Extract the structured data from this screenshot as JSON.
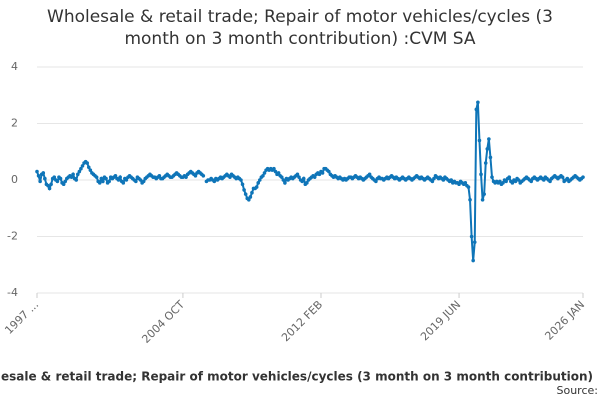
{
  "chart_data": {
    "type": "line",
    "title": "Wholesale & retail trade; Repair of motor vehicles/cycles (3 month on 3 month contribution) :CVM SA",
    "x_label": "esale & retail trade; Repair of motor vehicles/cycles (3 month on 3 month contribution)",
    "source": "Source:",
    "categories": [
      "1997 ...",
      null,
      null,
      null,
      null,
      null,
      null,
      null,
      null,
      null,
      null,
      null,
      null,
      null,
      null,
      null,
      null,
      null,
      null,
      null,
      null,
      null,
      null,
      null,
      null,
      null,
      null,
      null,
      null,
      null,
      null,
      null,
      null,
      null,
      null,
      null,
      null,
      null,
      null,
      null,
      null,
      null,
      null,
      null,
      null,
      null,
      null,
      null,
      null,
      null,
      null,
      null,
      null,
      null,
      null,
      null,
      null,
      null,
      null,
      null,
      null,
      null,
      null,
      null,
      null,
      null,
      null,
      null,
      null,
      null,
      null,
      null,
      null,
      null,
      null,
      null,
      null,
      null,
      null,
      null,
      null,
      null,
      null,
      null,
      null,
      null,
      null,
      null,
      null,
      null,
      null,
      null,
      null,
      "2004 OCT",
      null,
      null,
      null,
      null,
      null,
      null,
      null,
      null,
      null,
      null,
      null,
      null,
      null,
      null,
      null,
      null,
      null,
      null,
      null,
      null,
      null,
      null,
      null,
      null,
      null,
      null,
      null,
      null,
      null,
      null,
      null,
      null,
      null,
      null,
      null,
      null,
      null,
      null,
      null,
      null,
      null,
      null,
      null,
      null,
      null,
      null,
      null,
      null,
      null,
      null,
      null,
      null,
      null,
      null,
      null,
      null,
      null,
      null,
      null,
      null,
      null,
      null,
      null,
      null,
      null,
      null,
      null,
      null,
      null,
      null,
      null,
      null,
      null,
      null,
      null,
      null,
      null,
      null,
      null,
      null,
      null,
      null,
      null,
      null,
      null,
      null,
      null,
      "2012 FEB",
      null,
      null,
      null,
      null,
      null,
      null,
      null,
      null,
      null,
      null,
      null,
      null,
      null,
      null,
      null,
      null,
      null,
      null,
      null,
      null,
      null,
      null,
      null,
      null,
      null,
      null,
      null,
      null,
      null,
      null,
      null,
      null,
      null,
      null,
      null,
      null,
      null,
      null,
      null,
      null,
      null,
      null,
      null,
      null,
      null,
      null,
      null,
      null,
      null,
      null,
      null,
      null,
      null,
      null,
      null,
      null,
      null,
      null,
      null,
      null,
      null,
      null,
      null,
      null,
      null,
      null,
      null,
      null,
      null,
      null,
      null,
      null,
      null,
      null,
      null,
      null,
      null,
      null,
      null,
      null,
      null,
      null,
      null,
      null,
      null,
      null,
      null,
      "2019 JUN",
      null,
      null,
      null,
      null,
      null,
      null,
      null,
      null,
      null,
      null,
      null,
      null,
      null,
      null,
      null,
      null,
      null,
      null,
      null,
      null,
      null,
      null,
      null,
      null,
      null,
      null,
      null,
      null,
      null,
      null,
      null,
      null,
      null,
      null,
      null,
      null,
      null,
      null,
      null,
      null,
      null,
      null,
      null,
      null,
      null,
      null,
      null,
      null,
      null,
      null,
      null,
      null,
      null,
      null,
      null,
      null,
      null,
      null,
      null,
      null,
      null,
      null,
      null,
      null,
      null,
      null,
      null,
      null,
      null,
      null,
      null,
      null,
      null,
      null,
      null,
      null,
      null,
      null,
      "2026 JAN"
    ],
    "series": [
      {
        "color": "#0f75b8",
        "values": [
          0.3,
          0.15,
          -0.05,
          0.2,
          0.25,
          0.05,
          -0.15,
          -0.2,
          -0.3,
          -0.15,
          0.05,
          0.1,
          0,
          -0.05,
          0.1,
          0.05,
          -0.1,
          -0.15,
          -0.05,
          0.05,
          0.1,
          0.15,
          0.1,
          0.2,
          0.05,
          0,
          0.2,
          0.3,
          0.4,
          0.5,
          0.6,
          0.65,
          0.6,
          0.45,
          0.35,
          0.25,
          0.2,
          0.15,
          0.1,
          -0.05,
          -0.1,
          0.05,
          -0.05,
          0.1,
          0.05,
          -0.1,
          -0.05,
          0.1,
          0.05,
          0.1,
          0.15,
          0.05,
          0,
          0.1,
          -0.05,
          -0.1,
          0.05,
          0,
          0.1,
          0.15,
          0.1,
          0.05,
          0,
          -0.05,
          0.1,
          0.05,
          0,
          -0.1,
          -0.05,
          0.05,
          0.1,
          0.15,
          0.2,
          0.15,
          0.1,
          0.1,
          0.05,
          0.1,
          0.15,
          0.05,
          0.05,
          0.1,
          0.15,
          0.2,
          0.15,
          0.1,
          0.1,
          0.15,
          0.2,
          0.25,
          0.2,
          0.15,
          0.1,
          0.1,
          0.15,
          0.1,
          0.2,
          0.25,
          0.3,
          0.25,
          0.2,
          0.15,
          0.25,
          0.3,
          0.25,
          0.2,
          0.15,
          null,
          -0.05,
          0,
          0,
          0.05,
          0,
          -0.05,
          0.05,
          0,
          0.05,
          0.1,
          0.05,
          0.1,
          0.15,
          0.2,
          0.15,
          0.1,
          0.2,
          0.15,
          0.1,
          0.05,
          0.1,
          0.05,
          0,
          -0.15,
          -0.35,
          -0.5,
          -0.65,
          -0.7,
          -0.6,
          -0.45,
          -0.3,
          -0.3,
          -0.25,
          -0.1,
          0,
          0.1,
          0.15,
          0.25,
          0.35,
          0.4,
          0.35,
          0.4,
          0.35,
          0.4,
          0.3,
          0.2,
          0.25,
          0.15,
          0.1,
          0,
          -0.1,
          0.05,
          0,
          0.05,
          0.1,
          0.05,
          0.1,
          0.15,
          0.2,
          0.1,
          0,
          -0.05,
          0.05,
          -0.15,
          -0.1,
          0,
          0.05,
          0.1,
          0.15,
          0.1,
          0.2,
          0.25,
          0.2,
          0.3,
          0.25,
          0.4,
          0.4,
          0.35,
          0.3,
          0.2,
          0.15,
          0.1,
          0.15,
          0.1,
          0.05,
          0.1,
          0.05,
          0,
          0.05,
          0,
          0.05,
          0.1,
          0.1,
          0.05,
          0.1,
          0.15,
          0.1,
          0.05,
          0.1,
          0.05,
          0,
          0.05,
          0.1,
          0.15,
          0.2,
          0.1,
          0.05,
          0,
          -0.05,
          0.05,
          0.1,
          0.05,
          0.05,
          0,
          0.05,
          0.1,
          0.05,
          0.1,
          0.15,
          0.1,
          0.05,
          0.1,
          0.05,
          0,
          0.05,
          0.1,
          0.05,
          0,
          0.05,
          0.1,
          0.05,
          0,
          0.05,
          0.1,
          0.15,
          0.1,
          0.05,
          0.1,
          0.05,
          0,
          0.05,
          0.1,
          0.05,
          0,
          -0.05,
          0.05,
          0.15,
          0.1,
          0.05,
          0.1,
          0.05,
          0,
          0.1,
          0.05,
          0,
          -0.05,
          0,
          -0.1,
          -0.05,
          -0.1,
          -0.1,
          -0.15,
          -0.05,
          -0.1,
          -0.15,
          -0.1,
          -0.2,
          -0.25,
          -0.7,
          -2,
          -2.85,
          -2.2,
          2.5,
          2.75,
          1.4,
          0.2,
          -0.7,
          -0.5,
          0.6,
          1.1,
          1.45,
          0.8,
          0.1,
          -0.05,
          -0.1,
          -0.05,
          -0.1,
          -0.05,
          -0.15,
          -0.1,
          0,
          -0.05,
          0.05,
          0.1,
          -0.05,
          -0.1,
          0,
          -0.05,
          0.05,
          0,
          -0.1,
          -0.05,
          0,
          0.05,
          0.1,
          0.05,
          0,
          -0.05,
          0.05,
          0.1,
          0.05,
          0,
          0.05,
          0.1,
          0.05,
          0,
          0.1,
          0.05,
          0,
          -0.05,
          0.05,
          0.1,
          0.15,
          0.1,
          0.05,
          0.1,
          0.15,
          0.1,
          -0.05,
          0,
          0.05,
          -0.05,
          0,
          0.05,
          0.1,
          0.15,
          0.1,
          0.05,
          0,
          0.05,
          0.1
        ]
      }
    ],
    "ylim": [
      -4,
      4
    ],
    "yticks": [
      -4,
      -2,
      0,
      2,
      4
    ],
    "grid": true
  }
}
